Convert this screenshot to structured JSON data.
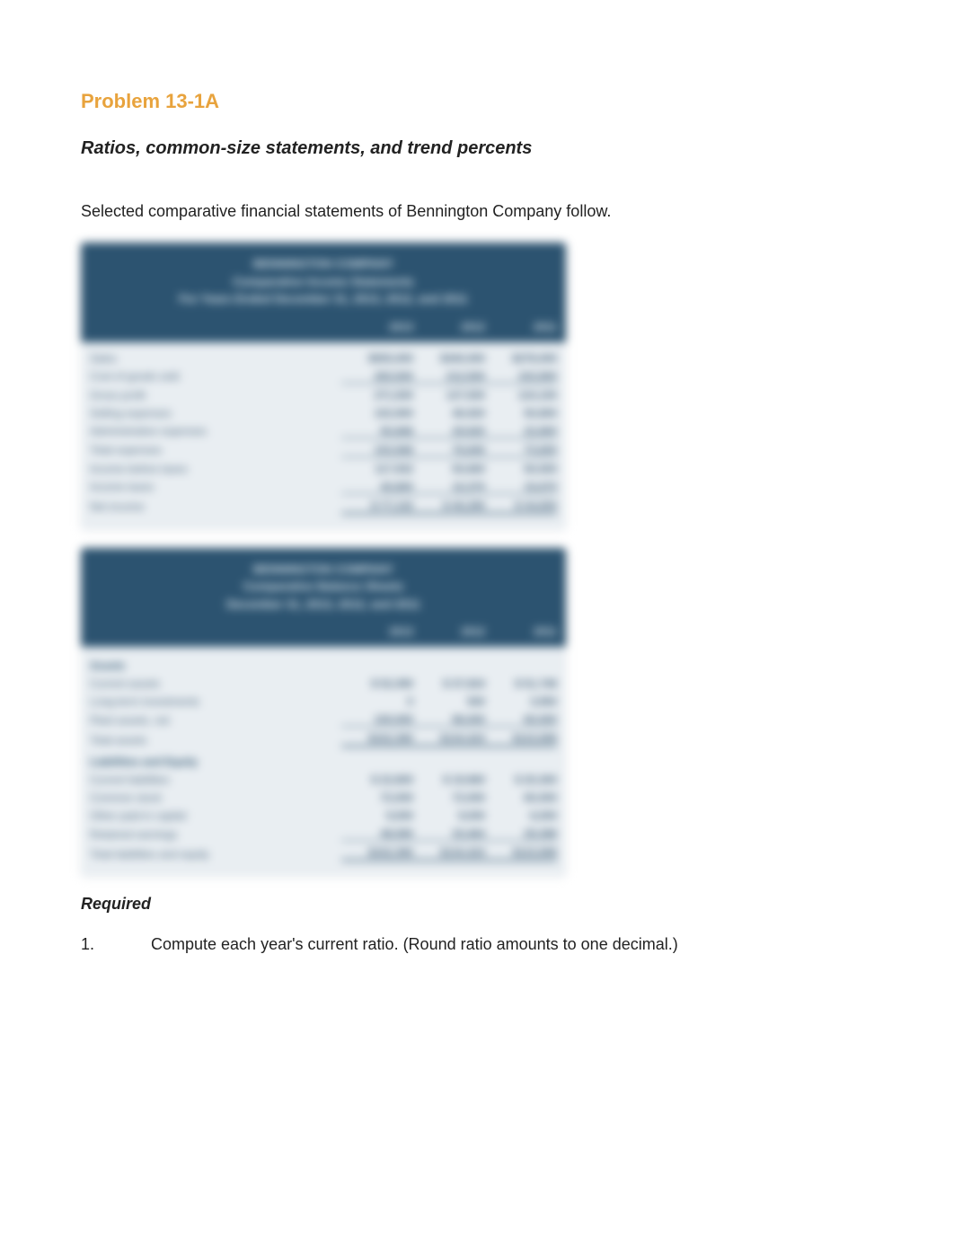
{
  "problem": {
    "number": "Problem 13-1A",
    "title": "Ratios, common-size statements, and trend percents",
    "intro": "Selected comparative financial statements of Bennington Company follow."
  },
  "colors": {
    "accent": "#e8a33d",
    "header_bg": "#2c5370",
    "header_text": "#d6e2ea",
    "body_bg": "#e9eef2",
    "row_text": "#44617a"
  },
  "income_stmt": {
    "header": {
      "l1": "BENNINGTON COMPANY",
      "l2": "Comparative Income Statements",
      "l3": "For Years Ended December 31, 2013, 2012, and 2011"
    },
    "columns": [
      "2013",
      "2012",
      "2011"
    ],
    "rows": [
      {
        "label": "Sales",
        "v": [
          "$555,000",
          "$340,000",
          "$278,000"
        ],
        "style": ""
      },
      {
        "label": "Cost of goods sold",
        "v": [
          "283,500",
          "212,500",
          "153,900"
        ],
        "style": "underline"
      },
      {
        "label": "Gross profit",
        "v": [
          "271,500",
          "127,500",
          "124,100"
        ],
        "style": ""
      },
      {
        "label": "Selling expenses",
        "v": [
          "102,900",
          "46,920",
          "50,800"
        ],
        "style": ""
      },
      {
        "label": "Administrative expenses",
        "v": [
          "50,668",
          "29,920",
          "22,800"
        ],
        "style": "underline"
      },
      {
        "label": "Total expenses",
        "v": [
          "153,568",
          "76,840",
          "73,600"
        ],
        "style": "underline"
      },
      {
        "label": "Income before taxes",
        "v": [
          "117,932",
          "50,660",
          "50,500"
        ],
        "style": ""
      },
      {
        "label": "Income taxes",
        "v": [
          "40,800",
          "10,370",
          "15,670"
        ],
        "style": "underline"
      },
      {
        "label": "Net income",
        "v": [
          "$ 77,132",
          "$ 40,290",
          "$ 34,830"
        ],
        "style": "double"
      }
    ]
  },
  "balance_sheet": {
    "header": {
      "l1": "BENNINGTON COMPANY",
      "l2": "Comparative Balance Sheets",
      "l3": "December 31, 2013, 2012, and 2011"
    },
    "columns": [
      "2013",
      "2012",
      "2011"
    ],
    "sections": [
      {
        "title": "Assets",
        "rows": [
          {
            "label": "Current assets",
            "v": [
              "$ 52,390",
              "$ 37,924",
              "$ 51,748"
            ],
            "style": ""
          },
          {
            "label": "Long-term investments",
            "v": [
              "0",
              "500",
              "3,950"
            ],
            "style": ""
          },
          {
            "label": "Plant assets, net",
            "v": [
              "100,000",
              "96,000",
              "60,000"
            ],
            "style": "underline"
          },
          {
            "label": "Total assets",
            "v": [
              "$152,390",
              "$134,424",
              "$115,698"
            ],
            "style": "double"
          }
        ]
      },
      {
        "title": "Liabilities and Equity",
        "rows": [
          {
            "label": "Current liabilities",
            "v": [
              "$ 22,800",
              "$ 19,960",
              "$ 20,300"
            ],
            "style": ""
          },
          {
            "label": "Common stock",
            "v": [
              "72,000",
              "72,000",
              "60,000"
            ],
            "style": ""
          },
          {
            "label": "Other paid-in capital",
            "v": [
              "9,000",
              "9,000",
              "6,000"
            ],
            "style": ""
          },
          {
            "label": "Retained earnings",
            "v": [
              "48,590",
              "33,464",
              "29,398"
            ],
            "style": "underline"
          },
          {
            "label": "Total liabilities and equity",
            "v": [
              "$152,390",
              "$134,424",
              "$115,698"
            ],
            "style": "double"
          }
        ]
      }
    ]
  },
  "required": {
    "label": "Required",
    "items": [
      {
        "n": "1.",
        "text": "Compute each year's current ratio. (Round ratio amounts to one decimal.)"
      }
    ]
  }
}
